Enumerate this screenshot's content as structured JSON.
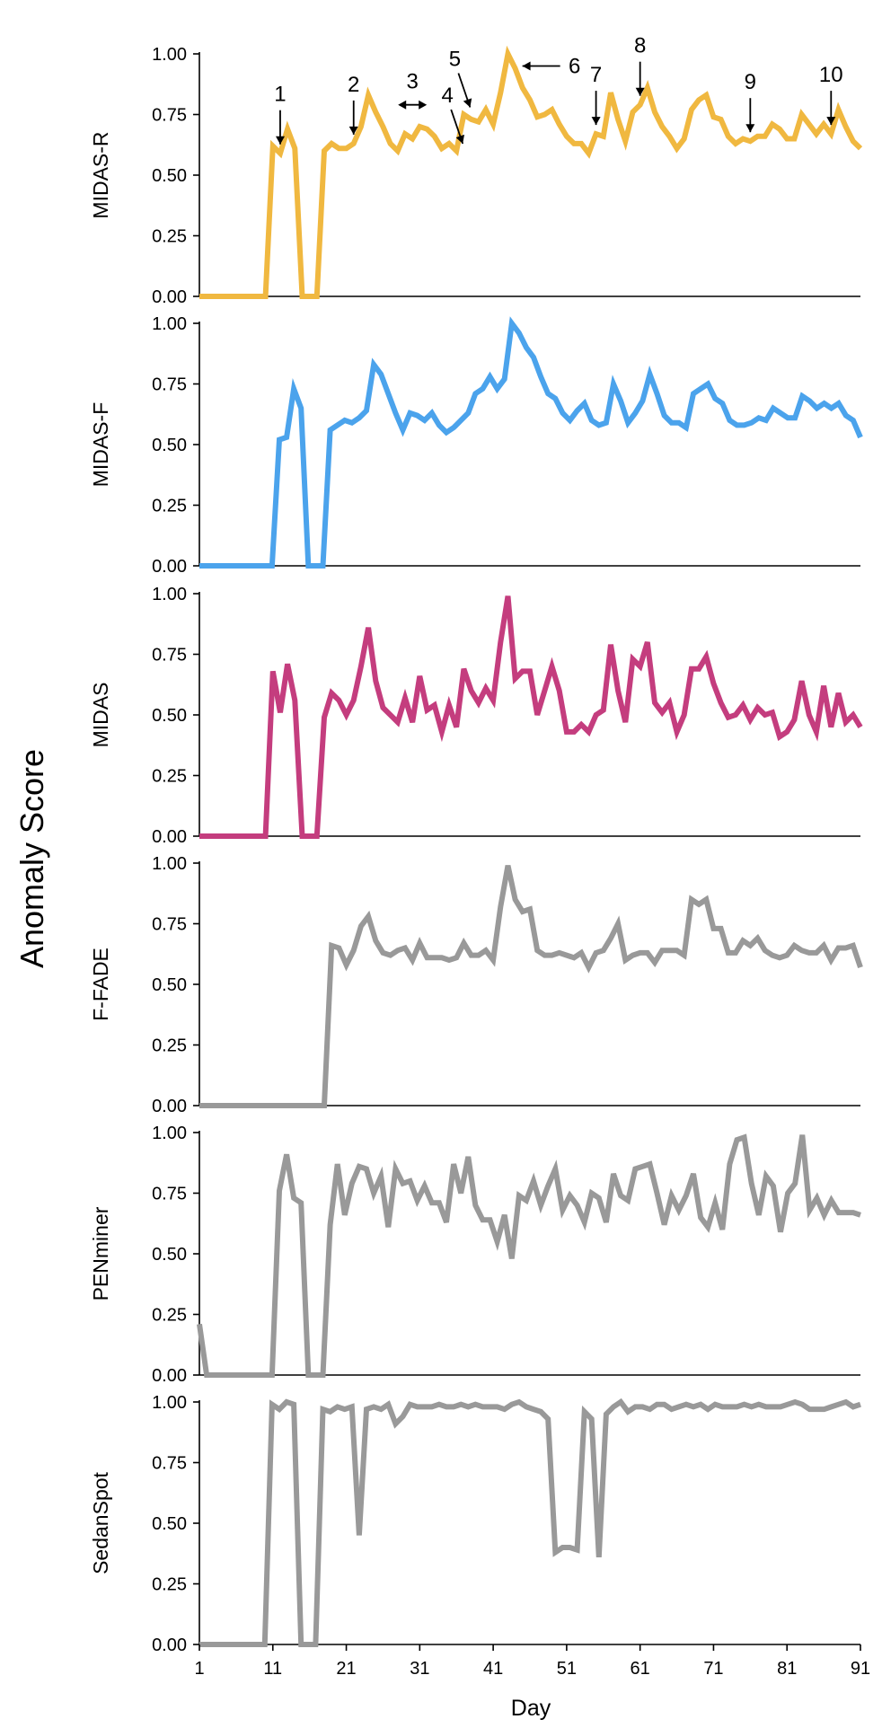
{
  "chart_data": {
    "type": "line",
    "ylabel": "Anomaly Score",
    "xlabel": "Day",
    "xlim": [
      1,
      91
    ],
    "x_ticks": [
      "1",
      "11",
      "21",
      "31",
      "41",
      "51",
      "61",
      "71",
      "81",
      "91"
    ],
    "y_ticks": [
      "0.00",
      "0.25",
      "0.50",
      "0.75",
      "1.00"
    ],
    "ylim": [
      0,
      1
    ],
    "grid": false,
    "panels": [
      {
        "name": "MIDAS-R",
        "color": "#F0B840",
        "x_start": 1,
        "x_end": 91,
        "values": [
          0,
          0,
          0,
          0,
          0,
          0,
          0,
          0,
          0,
          0,
          0.62,
          0.59,
          0.69,
          0.61,
          0,
          0,
          0,
          0.6,
          0.63,
          0.61,
          0.61,
          0.63,
          0.7,
          0.83,
          0.76,
          0.7,
          0.63,
          0.6,
          0.67,
          0.65,
          0.7,
          0.69,
          0.66,
          0.61,
          0.63,
          0.6,
          0.75,
          0.73,
          0.72,
          0.77,
          0.71,
          0.84,
          1.0,
          0.94,
          0.86,
          0.81,
          0.74,
          0.75,
          0.77,
          0.71,
          0.66,
          0.63,
          0.63,
          0.59,
          0.67,
          0.66,
          0.84,
          0.73,
          0.64,
          0.76,
          0.79,
          0.86,
          0.76,
          0.7,
          0.66,
          0.61,
          0.65,
          0.77,
          0.81,
          0.83,
          0.74,
          0.73,
          0.66,
          0.63,
          0.65,
          0.64,
          0.66,
          0.66,
          0.71,
          0.69,
          0.65,
          0.65,
          0.75,
          0.71,
          0.67,
          0.71,
          0.67,
          0.77,
          0.7,
          0.64,
          0.61
        ]
      },
      {
        "name": "MIDAS-F",
        "color": "#4BA3EC",
        "x_start": 1,
        "x_end": 91,
        "values": [
          0,
          0,
          0,
          0,
          0,
          0,
          0,
          0,
          0,
          0,
          0,
          0.52,
          0.53,
          0.73,
          0.65,
          0,
          0,
          0,
          0.56,
          0.58,
          0.6,
          0.59,
          0.61,
          0.64,
          0.83,
          0.79,
          0.71,
          0.63,
          0.56,
          0.63,
          0.62,
          0.6,
          0.63,
          0.58,
          0.55,
          0.57,
          0.6,
          0.63,
          0.71,
          0.73,
          0.78,
          0.73,
          0.77,
          1.0,
          0.96,
          0.9,
          0.86,
          0.78,
          0.71,
          0.69,
          0.63,
          0.6,
          0.64,
          0.67,
          0.6,
          0.58,
          0.59,
          0.75,
          0.68,
          0.59,
          0.63,
          0.68,
          0.79,
          0.71,
          0.62,
          0.59,
          0.59,
          0.57,
          0.71,
          0.73,
          0.75,
          0.69,
          0.67,
          0.6,
          0.58,
          0.58,
          0.59,
          0.61,
          0.6,
          0.65,
          0.63,
          0.61,
          0.61,
          0.7,
          0.68,
          0.65,
          0.67,
          0.65,
          0.67,
          0.62,
          0.6,
          0.53
        ]
      },
      {
        "name": "MIDAS",
        "color": "#C43D7E",
        "x_start": 1,
        "x_end": 91,
        "values": [
          0,
          0,
          0,
          0,
          0,
          0,
          0,
          0,
          0,
          0,
          0.68,
          0.51,
          0.71,
          0.56,
          0,
          0,
          0,
          0.49,
          0.59,
          0.56,
          0.5,
          0.56,
          0.7,
          0.86,
          0.64,
          0.53,
          0.5,
          0.47,
          0.57,
          0.47,
          0.66,
          0.52,
          0.54,
          0.43,
          0.54,
          0.45,
          0.69,
          0.6,
          0.55,
          0.61,
          0.56,
          0.8,
          0.99,
          0.65,
          0.68,
          0.68,
          0.5,
          0.6,
          0.7,
          0.6,
          0.43,
          0.43,
          0.46,
          0.43,
          0.5,
          0.52,
          0.79,
          0.6,
          0.47,
          0.73,
          0.7,
          0.8,
          0.55,
          0.51,
          0.55,
          0.43,
          0.5,
          0.69,
          0.69,
          0.74,
          0.63,
          0.55,
          0.49,
          0.5,
          0.54,
          0.48,
          0.53,
          0.5,
          0.51,
          0.41,
          0.43,
          0.48,
          0.64,
          0.5,
          0.43,
          0.62,
          0.45,
          0.59,
          0.47,
          0.5,
          0.45
        ]
      },
      {
        "name": "F-FADE",
        "color": "#999999",
        "x_start": 1,
        "x_end": 91,
        "values": [
          0,
          0,
          0,
          0,
          0,
          0,
          0,
          0,
          0,
          0,
          0,
          0,
          0,
          0,
          0,
          0,
          0,
          0,
          0.66,
          0.65,
          0.58,
          0.64,
          0.74,
          0.78,
          0.68,
          0.63,
          0.62,
          0.64,
          0.65,
          0.6,
          0.67,
          0.61,
          0.61,
          0.61,
          0.6,
          0.61,
          0.67,
          0.62,
          0.62,
          0.64,
          0.6,
          0.82,
          0.99,
          0.85,
          0.8,
          0.81,
          0.64,
          0.62,
          0.62,
          0.63,
          0.62,
          0.61,
          0.63,
          0.57,
          0.63,
          0.64,
          0.69,
          0.75,
          0.6,
          0.62,
          0.63,
          0.63,
          0.59,
          0.64,
          0.64,
          0.64,
          0.62,
          0.85,
          0.83,
          0.85,
          0.73,
          0.73,
          0.63,
          0.63,
          0.68,
          0.66,
          0.69,
          0.64,
          0.62,
          0.61,
          0.62,
          0.66,
          0.64,
          0.63,
          0.63,
          0.66,
          0.6,
          0.65,
          0.65,
          0.66,
          0.57
        ]
      },
      {
        "name": "PENminer",
        "color": "#999999",
        "x_start": 1,
        "x_end": 91,
        "values": [
          0.21,
          0,
          0,
          0,
          0,
          0,
          0,
          0,
          0,
          0,
          0,
          0.76,
          0.91,
          0.73,
          0.71,
          0,
          0,
          0,
          0.62,
          0.87,
          0.66,
          0.79,
          0.86,
          0.85,
          0.75,
          0.82,
          0.61,
          0.85,
          0.79,
          0.8,
          0.72,
          0.78,
          0.71,
          0.71,
          0.63,
          0.87,
          0.75,
          0.9,
          0.7,
          0.64,
          0.64,
          0.55,
          0.66,
          0.48,
          0.74,
          0.72,
          0.8,
          0.7,
          0.78,
          0.85,
          0.68,
          0.74,
          0.7,
          0.63,
          0.75,
          0.73,
          0.63,
          0.83,
          0.74,
          0.72,
          0.85,
          0.86,
          0.87,
          0.75,
          0.62,
          0.74,
          0.68,
          0.74,
          0.83,
          0.65,
          0.61,
          0.71,
          0.6,
          0.87,
          0.97,
          0.98,
          0.79,
          0.66,
          0.82,
          0.78,
          0.59,
          0.75,
          0.79,
          0.99,
          0.68,
          0.73,
          0.66,
          0.72,
          0.67,
          0.67,
          0.67,
          0.66
        ]
      },
      {
        "name": "SedanSpot",
        "color": "#999999",
        "x_start": 1,
        "x_end": 91,
        "values": [
          0,
          0,
          0,
          0,
          0,
          0,
          0,
          0,
          0,
          0,
          0.99,
          0.97,
          1.0,
          0.99,
          0,
          0,
          0,
          0.97,
          0.96,
          0.98,
          0.97,
          0.98,
          0.45,
          0.97,
          0.98,
          0.97,
          0.99,
          0.91,
          0.94,
          0.99,
          0.98,
          0.98,
          0.98,
          0.99,
          0.98,
          0.98,
          0.99,
          0.98,
          0.99,
          0.98,
          0.98,
          0.98,
          0.97,
          0.99,
          1.0,
          0.98,
          0.97,
          0.96,
          0.93,
          0.38,
          0.4,
          0.4,
          0.39,
          0.96,
          0.93,
          0.36,
          0.95,
          0.98,
          1.0,
          0.96,
          0.98,
          0.98,
          0.97,
          0.99,
          0.99,
          0.97,
          0.98,
          0.99,
          0.98,
          0.99,
          0.97,
          0.99,
          0.98,
          0.98,
          0.98,
          0.99,
          0.98,
          0.99,
          0.98,
          0.98,
          0.98,
          0.99,
          1.0,
          0.99,
          0.97,
          0.97,
          0.97,
          0.98,
          0.99,
          1.0,
          0.98,
          0.99
        ]
      }
    ],
    "annotations": [
      {
        "label": "1",
        "day": 12,
        "direction": "down"
      },
      {
        "label": "2",
        "day": 22,
        "direction": "down"
      },
      {
        "label": "3",
        "day": 30,
        "direction": "both-horizontal"
      },
      {
        "label": "4",
        "day": 36,
        "direction": "down-right"
      },
      {
        "label": "5",
        "day": 37,
        "direction": "down-right"
      },
      {
        "label": "6",
        "day": 44,
        "direction": "left"
      },
      {
        "label": "7",
        "day": 55,
        "direction": "down"
      },
      {
        "label": "8",
        "day": 61,
        "direction": "down"
      },
      {
        "label": "9",
        "day": 76,
        "direction": "down"
      },
      {
        "label": "10",
        "day": 87,
        "direction": "down"
      }
    ]
  }
}
